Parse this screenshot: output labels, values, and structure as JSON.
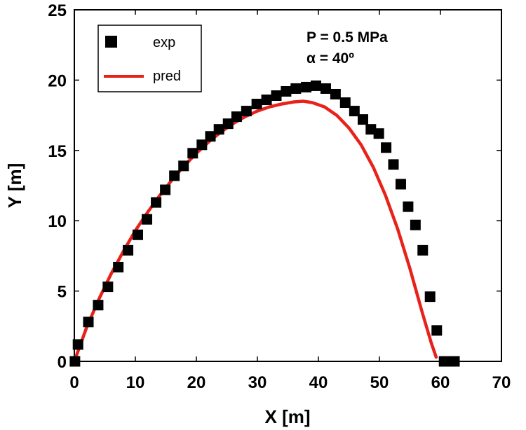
{
  "chart_data": {
    "type": "scatter",
    "xlabel": "X [m]",
    "ylabel": "Y [m]",
    "xlim": [
      0,
      70
    ],
    "ylim": [
      0,
      25
    ],
    "xticks": [
      0,
      10,
      20,
      30,
      40,
      50,
      60,
      70
    ],
    "yticks": [
      0,
      5,
      10,
      15,
      20,
      25
    ],
    "grid": false,
    "legend_position": "top-left",
    "annotations": [
      "P = 0.5 MPa",
      "α = 40º"
    ],
    "series": [
      {
        "name": "exp",
        "kind": "scatter",
        "marker": "square",
        "color": "#000000",
        "x": [
          0.1,
          0.6,
          2.3,
          3.9,
          5.5,
          7.2,
          8.8,
          10.4,
          11.9,
          13.4,
          14.9,
          16.4,
          17.9,
          19.4,
          20.9,
          22.3,
          23.7,
          25.2,
          26.6,
          28.2,
          29.9,
          31.5,
          33.1,
          34.7,
          36.3,
          38.0,
          39.6,
          41.2,
          42.8,
          44.4,
          45.9,
          47.3,
          48.6,
          49.9,
          51.1,
          52.3,
          53.5,
          54.7,
          55.9,
          57.1,
          58.3,
          59.4,
          60.6,
          61.6,
          62.3
        ],
        "y": [
          0.0,
          1.2,
          2.8,
          4.0,
          5.3,
          6.7,
          7.9,
          9.0,
          10.1,
          11.3,
          12.2,
          13.2,
          13.9,
          14.8,
          15.4,
          16.0,
          16.5,
          16.9,
          17.4,
          17.8,
          18.3,
          18.6,
          18.9,
          19.2,
          19.4,
          19.5,
          19.6,
          19.4,
          19.0,
          18.4,
          17.8,
          17.2,
          16.5,
          16.2,
          15.2,
          14.0,
          12.6,
          11.0,
          9.7,
          7.9,
          4.6,
          2.2,
          0.0,
          0.0,
          0.0
        ]
      },
      {
        "name": "pred",
        "kind": "line",
        "color": "#e8221b",
        "x": [
          0.0,
          2.0,
          4.0,
          6.0,
          8.0,
          10.0,
          12.0,
          14.0,
          16.0,
          18.0,
          20.0,
          22.0,
          24.0,
          26.0,
          28.0,
          30.0,
          32.0,
          34.0,
          36.0,
          37.5,
          39.0,
          41.0,
          43.0,
          45.0,
          47.0,
          49.0,
          51.0,
          53.0,
          55.0,
          57.0,
          58.5,
          59.3
        ],
        "y": [
          0.0,
          2.4,
          4.4,
          6.2,
          7.8,
          9.3,
          10.6,
          11.8,
          12.9,
          13.9,
          14.8,
          15.6,
          16.3,
          16.9,
          17.4,
          17.8,
          18.1,
          18.3,
          18.45,
          18.5,
          18.4,
          18.1,
          17.5,
          16.6,
          15.4,
          13.8,
          11.8,
          9.4,
          6.6,
          3.5,
          1.3,
          0.3
        ]
      }
    ]
  }
}
